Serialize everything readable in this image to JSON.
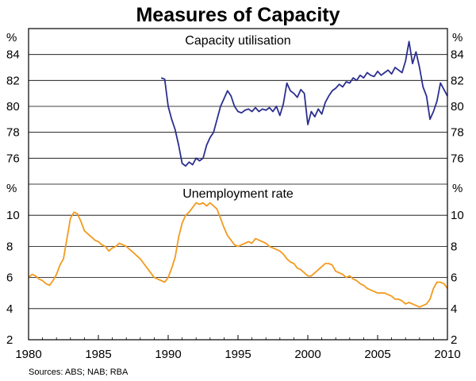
{
  "title": "Measures of Capacity",
  "source": "Sources: ABS; NAB; RBA",
  "colors": {
    "capacity": "#2b2f8f",
    "unemployment": "#f39a1e"
  },
  "chart_data": [
    {
      "type": "line",
      "panel": "top",
      "title": "Capacity utilisation",
      "unit": "%",
      "ylim": [
        74,
        86
      ],
      "yticks": [
        76,
        78,
        80,
        82,
        84
      ],
      "xlim": [
        1980,
        2010
      ],
      "xticks": [
        1980,
        1985,
        1990,
        1995,
        2000,
        2005,
        2010
      ],
      "series": [
        {
          "name": "Capacity utilisation",
          "x": [
            1989.5,
            1989.75,
            1990.0,
            1990.25,
            1990.5,
            1990.75,
            1991.0,
            1991.25,
            1991.5,
            1991.75,
            1992.0,
            1992.25,
            1992.5,
            1992.75,
            1993.0,
            1993.25,
            1993.5,
            1993.75,
            1994.0,
            1994.25,
            1994.5,
            1994.75,
            1995.0,
            1995.25,
            1995.5,
            1995.75,
            1996.0,
            1996.25,
            1996.5,
            1996.75,
            1997.0,
            1997.25,
            1997.5,
            1997.75,
            1998.0,
            1998.25,
            1998.5,
            1998.75,
            1999.0,
            1999.25,
            1999.5,
            1999.75,
            2000.0,
            2000.25,
            2000.5,
            2000.75,
            2001.0,
            2001.25,
            2001.5,
            2001.75,
            2002.0,
            2002.25,
            2002.5,
            2002.75,
            2003.0,
            2003.25,
            2003.5,
            2003.75,
            2004.0,
            2004.25,
            2004.5,
            2004.75,
            2005.0,
            2005.25,
            2005.5,
            2005.75,
            2006.0,
            2006.25,
            2006.5,
            2006.75,
            2007.0,
            2007.25,
            2007.5,
            2007.75,
            2008.0,
            2008.25,
            2008.5,
            2008.75,
            2009.0,
            2009.25,
            2009.5,
            2009.75,
            2010.0
          ],
          "values": [
            82.2,
            82.1,
            80.0,
            79.0,
            78.2,
            77.0,
            75.6,
            75.4,
            75.7,
            75.5,
            76.0,
            75.8,
            76.0,
            77.0,
            77.6,
            78.0,
            79.0,
            80.0,
            80.6,
            81.2,
            80.8,
            80.0,
            79.6,
            79.5,
            79.7,
            79.8,
            79.6,
            79.9,
            79.6,
            79.8,
            79.7,
            79.9,
            79.6,
            80.0,
            79.3,
            80.2,
            81.8,
            81.2,
            81.0,
            80.7,
            81.3,
            81.0,
            78.6,
            79.6,
            79.2,
            79.8,
            79.4,
            80.3,
            80.8,
            81.2,
            81.4,
            81.7,
            81.5,
            81.9,
            81.8,
            82.2,
            82.0,
            82.4,
            82.2,
            82.6,
            82.4,
            82.3,
            82.7,
            82.4,
            82.6,
            82.8,
            82.5,
            83.0,
            82.8,
            82.6,
            83.5,
            85.0,
            83.3,
            84.2,
            83.0,
            81.5,
            80.8,
            79.0,
            79.6,
            80.4,
            81.8,
            81.3,
            80.8
          ]
        }
      ]
    },
    {
      "type": "line",
      "panel": "bottom",
      "title": "Unemployment rate",
      "unit": "%",
      "ylim": [
        2,
        12
      ],
      "yticks": [
        2,
        4,
        6,
        8,
        10
      ],
      "xlim": [
        1980,
        2010
      ],
      "xticks": [
        1980,
        1985,
        1990,
        1995,
        2000,
        2005,
        2010
      ],
      "series": [
        {
          "name": "Unemployment rate",
          "x": [
            1980.0,
            1980.25,
            1980.5,
            1980.75,
            1981.0,
            1981.25,
            1981.5,
            1981.75,
            1982.0,
            1982.25,
            1982.5,
            1982.75,
            1983.0,
            1983.25,
            1983.5,
            1983.75,
            1984.0,
            1984.25,
            1984.5,
            1984.75,
            1985.0,
            1985.25,
            1985.5,
            1985.75,
            1986.0,
            1986.25,
            1986.5,
            1986.75,
            1987.0,
            1987.25,
            1987.5,
            1987.75,
            1988.0,
            1988.25,
            1988.5,
            1988.75,
            1989.0,
            1989.25,
            1989.5,
            1989.75,
            1990.0,
            1990.25,
            1990.5,
            1990.75,
            1991.0,
            1991.25,
            1991.5,
            1991.75,
            1992.0,
            1992.25,
            1992.5,
            1992.75,
            1993.0,
            1993.25,
            1993.5,
            1993.75,
            1994.0,
            1994.25,
            1994.5,
            1994.75,
            1995.0,
            1995.25,
            1995.5,
            1995.75,
            1996.0,
            1996.25,
            1996.5,
            1996.75,
            1997.0,
            1997.25,
            1997.5,
            1997.75,
            1998.0,
            1998.25,
            1998.5,
            1998.75,
            1999.0,
            1999.25,
            1999.5,
            1999.75,
            2000.0,
            2000.25,
            2000.5,
            2000.75,
            2001.0,
            2001.25,
            2001.5,
            2001.75,
            2002.0,
            2002.25,
            2002.5,
            2002.75,
            2003.0,
            2003.25,
            2003.5,
            2003.75,
            2004.0,
            2004.25,
            2004.5,
            2004.75,
            2005.0,
            2005.25,
            2005.5,
            2005.75,
            2006.0,
            2006.25,
            2006.5,
            2006.75,
            2007.0,
            2007.25,
            2007.5,
            2007.75,
            2008.0,
            2008.25,
            2008.5,
            2008.75,
            2009.0,
            2009.25,
            2009.5,
            2009.75,
            2010.0
          ],
          "values": [
            6.0,
            6.2,
            6.1,
            5.9,
            5.8,
            5.6,
            5.5,
            5.8,
            6.2,
            6.8,
            7.2,
            8.5,
            9.8,
            10.2,
            10.1,
            9.6,
            9.0,
            8.8,
            8.6,
            8.4,
            8.3,
            8.1,
            8.0,
            7.7,
            7.9,
            8.0,
            8.2,
            8.1,
            8.0,
            7.8,
            7.6,
            7.4,
            7.2,
            6.9,
            6.6,
            6.3,
            6.0,
            5.9,
            5.8,
            5.7,
            6.0,
            6.6,
            7.3,
            8.6,
            9.5,
            10.0,
            10.2,
            10.5,
            10.8,
            10.7,
            10.8,
            10.6,
            10.8,
            10.6,
            10.4,
            9.8,
            9.2,
            8.7,
            8.4,
            8.1,
            8.0,
            8.1,
            8.2,
            8.3,
            8.2,
            8.5,
            8.4,
            8.3,
            8.2,
            8.0,
            7.9,
            7.8,
            7.7,
            7.5,
            7.2,
            7.0,
            6.9,
            6.6,
            6.5,
            6.3,
            6.1,
            6.1,
            6.3,
            6.5,
            6.7,
            6.9,
            6.9,
            6.8,
            6.4,
            6.3,
            6.2,
            6.0,
            6.1,
            5.9,
            5.8,
            5.6,
            5.5,
            5.3,
            5.2,
            5.1,
            5.0,
            5.0,
            5.0,
            4.9,
            4.8,
            4.6,
            4.6,
            4.5,
            4.3,
            4.4,
            4.3,
            4.2,
            4.1,
            4.2,
            4.3,
            4.6,
            5.3,
            5.7,
            5.7,
            5.6,
            5.3
          ]
        }
      ]
    }
  ]
}
